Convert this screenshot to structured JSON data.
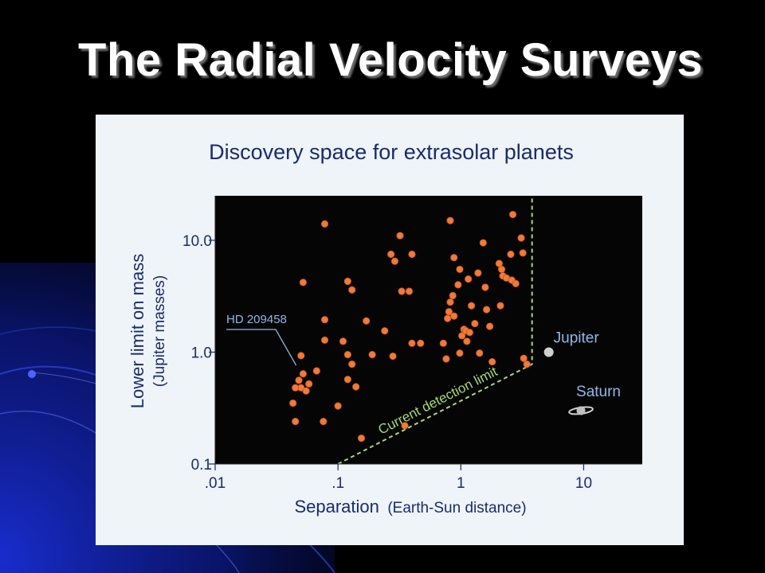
{
  "slide": {
    "title": "The Radial Velocity Surveys"
  },
  "chart_data": {
    "type": "scatter",
    "title": "Discovery space for extrasolar planets",
    "xlabel": "Separation",
    "xlabel_note": "(Earth-Sun distance)",
    "ylabel": "Lower limit on mass",
    "ylabel_note": "(Jupiter masses)",
    "xscale": "log",
    "yscale": "log",
    "xlim": [
      0.01,
      30
    ],
    "ylim": [
      0.1,
      25
    ],
    "xticks": [
      ".01",
      ".1",
      "1",
      "10"
    ],
    "xtick_values": [
      0.01,
      0.1,
      1,
      10
    ],
    "yticks": [
      "0.1",
      "1.0",
      "10.0"
    ],
    "ytick_values": [
      0.1,
      1.0,
      10.0
    ],
    "colors": {
      "plot_bg": "#050505",
      "point": "#f07a3a",
      "limit_line": "#a8dc6e",
      "label": "#1a2b6e",
      "annotation": "#8fb8e8",
      "panel": "#eef4f8"
    },
    "points": [
      {
        "x": 0.05,
        "y": 0.93
      },
      {
        "x": 0.052,
        "y": 0.64
      },
      {
        "x": 0.048,
        "y": 0.56
      },
      {
        "x": 0.05,
        "y": 0.48
      },
      {
        "x": 0.055,
        "y": 0.45
      },
      {
        "x": 0.043,
        "y": 0.35
      },
      {
        "x": 0.045,
        "y": 0.48
      },
      {
        "x": 0.045,
        "y": 0.24
      },
      {
        "x": 0.067,
        "y": 0.68
      },
      {
        "x": 0.058,
        "y": 0.52
      },
      {
        "x": 0.052,
        "y": 4.2
      },
      {
        "x": 0.078,
        "y": 14.0
      },
      {
        "x": 0.078,
        "y": 1.95
      },
      {
        "x": 0.078,
        "y": 1.28
      },
      {
        "x": 0.076,
        "y": 0.24
      },
      {
        "x": 0.12,
        "y": 4.3
      },
      {
        "x": 0.13,
        "y": 3.6
      },
      {
        "x": 0.11,
        "y": 1.25
      },
      {
        "x": 0.12,
        "y": 0.95
      },
      {
        "x": 0.13,
        "y": 0.78
      },
      {
        "x": 0.12,
        "y": 0.57
      },
      {
        "x": 0.14,
        "y": 0.49
      },
      {
        "x": 0.1,
        "y": 0.33
      },
      {
        "x": 0.155,
        "y": 0.17
      },
      {
        "x": 0.17,
        "y": 1.9
      },
      {
        "x": 0.19,
        "y": 0.95
      },
      {
        "x": 0.24,
        "y": 1.55
      },
      {
        "x": 0.27,
        "y": 7.5
      },
      {
        "x": 0.29,
        "y": 6.5
      },
      {
        "x": 0.32,
        "y": 11.0
      },
      {
        "x": 0.4,
        "y": 7.5
      },
      {
        "x": 0.33,
        "y": 3.5
      },
      {
        "x": 0.38,
        "y": 3.5
      },
      {
        "x": 0.4,
        "y": 1.2
      },
      {
        "x": 0.28,
        "y": 0.92
      },
      {
        "x": 0.35,
        "y": 0.22
      },
      {
        "x": 0.82,
        "y": 15.0
      },
      {
        "x": 0.88,
        "y": 7.0
      },
      {
        "x": 0.98,
        "y": 5.5
      },
      {
        "x": 0.95,
        "y": 4.0
      },
      {
        "x": 0.86,
        "y": 3.2
      },
      {
        "x": 0.82,
        "y": 2.8
      },
      {
        "x": 0.88,
        "y": 2.1
      },
      {
        "x": 0.8,
        "y": 2.3
      },
      {
        "x": 0.78,
        "y": 2.0
      },
      {
        "x": 0.72,
        "y": 1.2
      },
      {
        "x": 0.76,
        "y": 0.87
      },
      {
        "x": 0.98,
        "y": 0.98
      },
      {
        "x": 1.02,
        "y": 1.4
      },
      {
        "x": 1.06,
        "y": 1.6
      },
      {
        "x": 1.1,
        "y": 1.55
      },
      {
        "x": 1.12,
        "y": 1.25
      },
      {
        "x": 1.18,
        "y": 1.5
      },
      {
        "x": 1.15,
        "y": 4.5
      },
      {
        "x": 1.22,
        "y": 2.6
      },
      {
        "x": 1.3,
        "y": 1.8
      },
      {
        "x": 1.38,
        "y": 5.1
      },
      {
        "x": 1.42,
        "y": 0.98
      },
      {
        "x": 1.52,
        "y": 9.5
      },
      {
        "x": 1.58,
        "y": 3.8
      },
      {
        "x": 1.62,
        "y": 2.4
      },
      {
        "x": 1.72,
        "y": 1.7
      },
      {
        "x": 1.8,
        "y": 0.82
      },
      {
        "x": 2.05,
        "y": 6.2
      },
      {
        "x": 2.15,
        "y": 5.5
      },
      {
        "x": 2.2,
        "y": 4.8
      },
      {
        "x": 2.35,
        "y": 4.6
      },
      {
        "x": 2.6,
        "y": 4.4
      },
      {
        "x": 2.55,
        "y": 7.5
      },
      {
        "x": 2.65,
        "y": 17.0
      },
      {
        "x": 2.8,
        "y": 4.1
      },
      {
        "x": 3.1,
        "y": 10.5
      },
      {
        "x": 3.2,
        "y": 7.7
      },
      {
        "x": 3.25,
        "y": 0.88
      },
      {
        "x": 3.45,
        "y": 0.78
      },
      {
        "x": 2.1,
        "y": 2.6
      },
      {
        "x": 0.47,
        "y": 1.2
      }
    ],
    "detection_limit": {
      "label": "Current detection limit",
      "path": [
        [
          0.1,
          0.1
        ],
        [
          3.8,
          0.78
        ],
        [
          3.8,
          25
        ]
      ]
    },
    "solar_system": [
      {
        "name": "Jupiter",
        "x": 5.2,
        "y": 1.0
      },
      {
        "name": "Saturn",
        "x": 9.5,
        "y": 0.3
      }
    ],
    "annotation": {
      "label": "HD 209458",
      "x": 0.047,
      "y": 0.69
    }
  }
}
